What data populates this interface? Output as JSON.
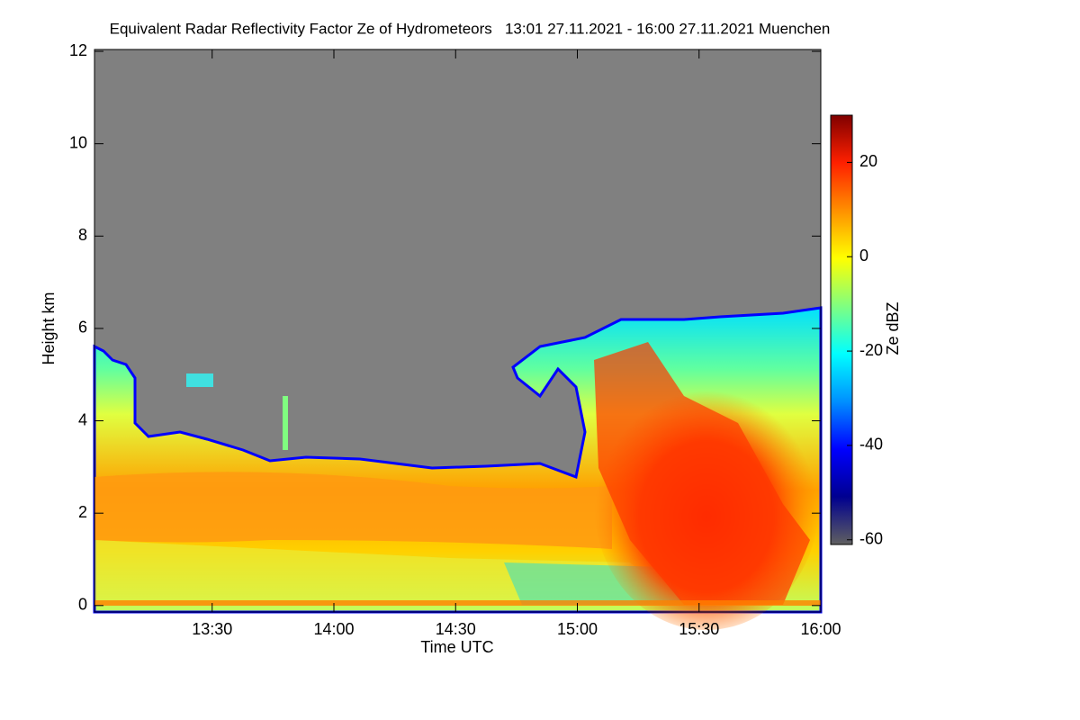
{
  "chart_data": {
    "type": "heatmap",
    "title": "Equivalent Radar Reflectivity Factor Ze of Hydrometeors   13:01 27.11.2021 - 16:00 27.11.2021 Muenchen",
    "x_label": "Time UTC",
    "y_label": "Height km",
    "xlim": [
      781,
      960
    ],
    "xticks": [
      {
        "value": 810,
        "label": "13:30"
      },
      {
        "value": 840,
        "label": "14:00"
      },
      {
        "value": 870,
        "label": "14:30"
      },
      {
        "value": 900,
        "label": "15:00"
      },
      {
        "value": 930,
        "label": "15:30"
      },
      {
        "value": 960,
        "label": "16:00"
      }
    ],
    "ylim": [
      -0.14,
      12.04
    ],
    "yticks": [
      0,
      2,
      4,
      6,
      8,
      10,
      12
    ],
    "colorbar": {
      "label": "Ze dBZ",
      "lim": [
        -61,
        30
      ],
      "ticks": [
        -60,
        -40,
        -20,
        0,
        20
      ],
      "colors": [
        "#606060",
        "#000090",
        "#0000ff",
        "#0090ff",
        "#00ffff",
        "#80ff80",
        "#ffff00",
        "#ff9000",
        "#ff2000",
        "#800000"
      ]
    }
  }
}
